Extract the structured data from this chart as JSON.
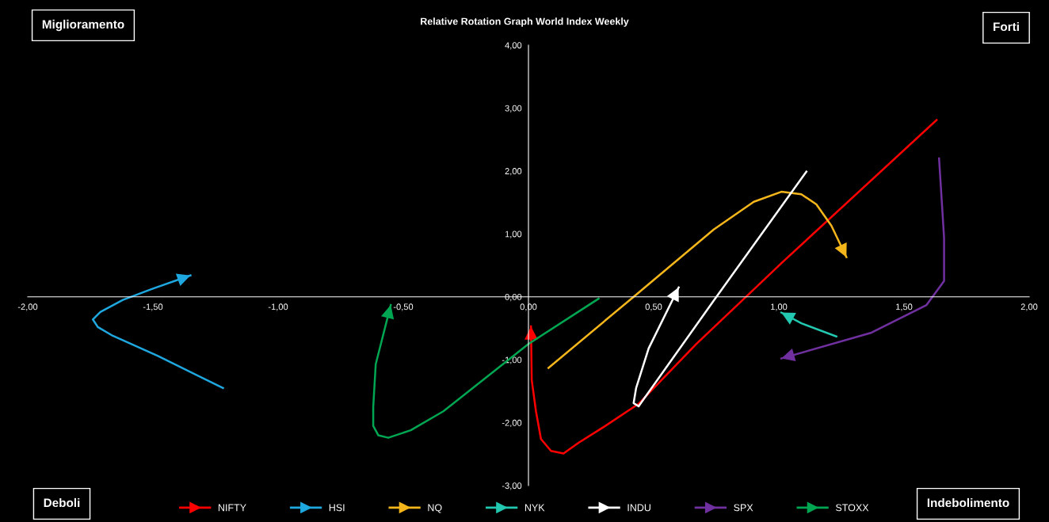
{
  "chart_data": {
    "type": "line",
    "title": "Relative Rotation Graph World Index Weekly",
    "annotations": [
      "Miglioramento",
      "Forti",
      "Deboli",
      "Indebolimento"
    ],
    "xlim": [
      -2,
      2
    ],
    "ylim": [
      -3,
      4
    ],
    "xticks": [
      {
        "value": -2,
        "label": "-2,00"
      },
      {
        "value": -1.5,
        "label": "-1,50"
      },
      {
        "value": -1,
        "label": "-1,00"
      },
      {
        "value": -0.5,
        "label": "-0,50"
      },
      {
        "value": 0,
        "label": "0,00"
      },
      {
        "value": 0.5,
        "label": "0,50"
      },
      {
        "value": 1,
        "label": "1,00"
      },
      {
        "value": 1.5,
        "label": "1,50"
      },
      {
        "value": 2,
        "label": "2,00"
      }
    ],
    "yticks": [
      {
        "value": -3,
        "label": "-3,00"
      },
      {
        "value": -2,
        "label": "-2,00"
      },
      {
        "value": -1,
        "label": "-1,00"
      },
      {
        "value": 0,
        "label": "0,00"
      },
      {
        "value": 1,
        "label": "1,00"
      },
      {
        "value": 2,
        "label": "2,00"
      },
      {
        "value": 3,
        "label": "3,00"
      },
      {
        "value": 4,
        "label": "4,00"
      }
    ],
    "grid": false,
    "legend": "bottom",
    "marker": "none",
    "line_style": "solid",
    "series": [
      {
        "name": "NIFTY",
        "color": "#ff0000",
        "x": [
          1.63,
          1.02,
          0.67,
          0.44,
          0.3,
          0.2,
          0.14,
          0.09,
          0.05,
          0.03,
          0.013,
          0.01
        ],
        "values": [
          2.81,
          0.57,
          -0.75,
          -1.7,
          -2.07,
          -2.32,
          -2.49,
          -2.45,
          -2.26,
          -1.82,
          -1.32,
          -0.47
        ]
      },
      {
        "name": "HSI",
        "color": "#1fa8e0",
        "x": [
          -1.22,
          -1.48,
          -1.66,
          -1.72,
          -1.74,
          -1.71,
          -1.62,
          -1.5,
          -1.35
        ],
        "values": [
          -1.45,
          -0.94,
          -0.62,
          -0.48,
          -0.36,
          -0.24,
          -0.05,
          0.13,
          0.34
        ]
      },
      {
        "name": "NQ",
        "color": "#f5b61b",
        "x": [
          0.08,
          0.42,
          0.74,
          0.9,
          1.01,
          1.09,
          1.15,
          1.21,
          1.27
        ],
        "values": [
          -1.13,
          0.0,
          1.07,
          1.51,
          1.67,
          1.63,
          1.47,
          1.13,
          0.63
        ]
      },
      {
        "name": "NYK",
        "color": "#22c8b0",
        "x": [
          1.23,
          1.09,
          1.01
        ],
        "values": [
          -0.63,
          -0.42,
          -0.25
        ]
      },
      {
        "name": "INDU",
        "color": "#ffffff",
        "x": [
          1.11,
          0.74,
          0.44,
          0.42,
          0.43,
          0.48,
          0.6
        ],
        "values": [
          1.99,
          -0.06,
          -1.74,
          -1.69,
          -1.45,
          -0.82,
          0.15
        ]
      },
      {
        "name": "SPX",
        "color": "#7030a0",
        "x": [
          1.64,
          1.66,
          1.66,
          1.59,
          1.37,
          1.01
        ],
        "values": [
          2.2,
          0.94,
          0.25,
          -0.13,
          -0.57,
          -0.98
        ]
      },
      {
        "name": "STOXX",
        "color": "#00a651",
        "x": [
          0.28,
          0.0,
          -0.34,
          -0.47,
          -0.56,
          -0.6,
          -0.62,
          -0.62,
          -0.61,
          -0.55
        ],
        "values": [
          -0.03,
          -0.75,
          -1.82,
          -2.12,
          -2.24,
          -2.2,
          -2.05,
          -1.75,
          -1.07,
          -0.13
        ]
      }
    ]
  }
}
